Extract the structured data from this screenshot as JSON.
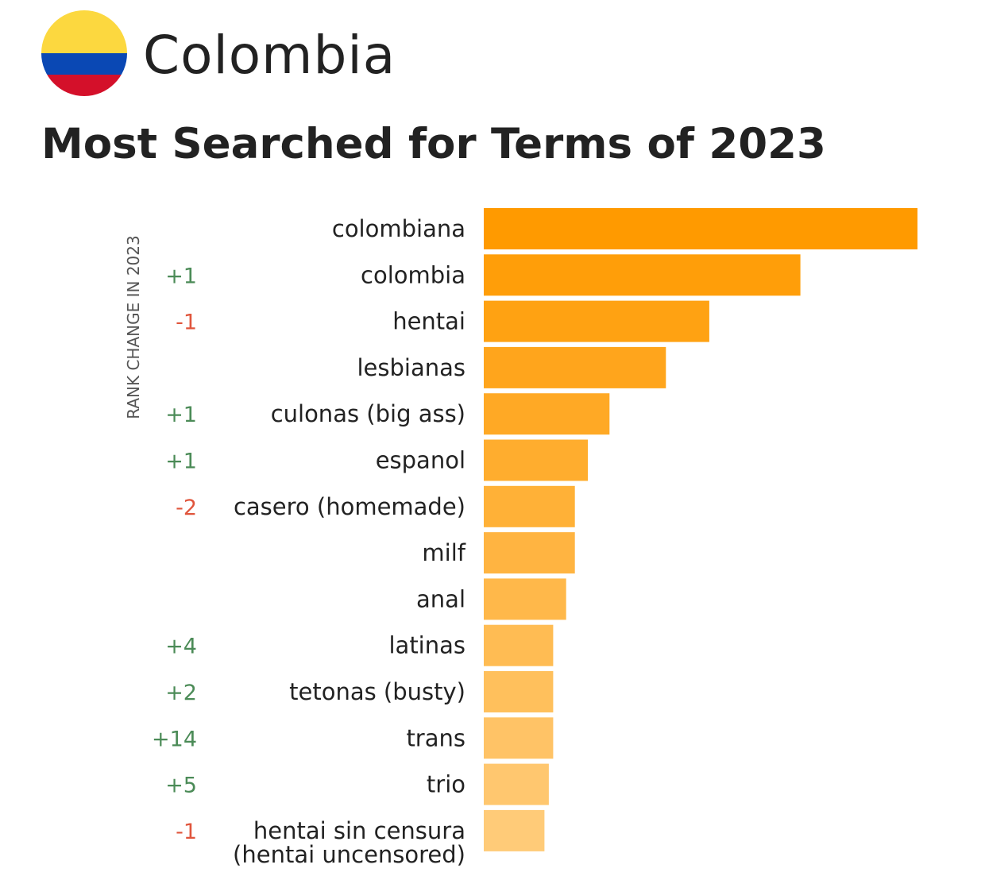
{
  "header": {
    "country": "Colombia",
    "title": "Most Searched for Terms of 2023",
    "flag_colors": [
      "#FCD83F",
      "#0A48B4",
      "#D4102A"
    ]
  },
  "colors": {
    "bar_start": "#FF9A00",
    "bar_end": "#FFCB78",
    "rank_up": "#4B8B57",
    "rank_down": "#E0553C",
    "label": "#222222"
  },
  "chart_data": {
    "type": "bar",
    "orientation": "horizontal",
    "title": "Most Searched for Terms of 2023",
    "rank_change_label": "RANK CHANGE IN 2023",
    "categories": [
      [
        "colombiana"
      ],
      [
        "colombia"
      ],
      [
        "hentai"
      ],
      [
        "lesbianas"
      ],
      [
        "culonas (big ass)"
      ],
      [
        "espanol"
      ],
      [
        "casero (homemade)"
      ],
      [
        "milf"
      ],
      [
        "anal"
      ],
      [
        "latinas"
      ],
      [
        "tetonas (busty)"
      ],
      [
        "trans"
      ],
      [
        "trio"
      ],
      [
        "hentai sin censura",
        "(hentai uncensored)"
      ]
    ],
    "rank_change": [
      "",
      "+1",
      "-1",
      "",
      "+1",
      "+1",
      "-2",
      "",
      "",
      "+4",
      "+2",
      "+14",
      "+5",
      "-1"
    ],
    "values": [
      100,
      73,
      52,
      42,
      29,
      24,
      21,
      21,
      19,
      16,
      16,
      16,
      15,
      14
    ],
    "xlim": [
      0,
      100
    ],
    "grid": false,
    "legend": "none"
  }
}
